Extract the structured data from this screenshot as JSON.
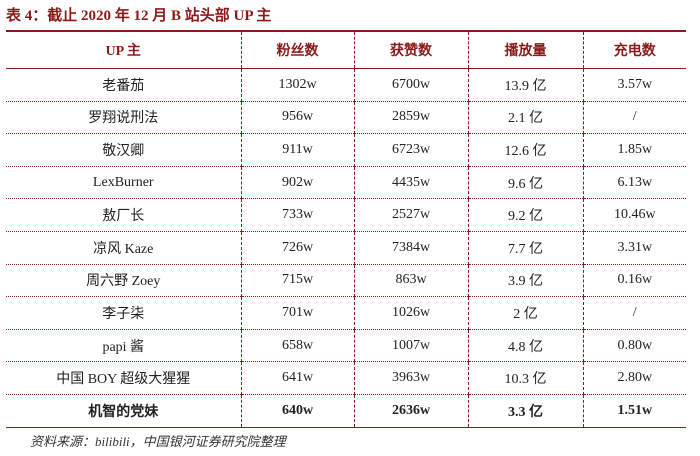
{
  "header": {
    "title": "表 4：截止 2020 年 12 月 B 站头部 UP 主"
  },
  "table": {
    "columns": [
      "UP 主",
      "粉丝数",
      "获赞数",
      "播放量",
      "充电数"
    ],
    "rows": [
      [
        "老番茄",
        "1302w",
        "6700w",
        "13.9 亿",
        "3.57w"
      ],
      [
        "罗翔说刑法",
        "956w",
        "2859w",
        "2.1 亿",
        "/"
      ],
      [
        "敬汉卿",
        "911w",
        "6723w",
        "12.6 亿",
        "1.85w"
      ],
      [
        "LexBurner",
        "902w",
        "4435w",
        "9.6 亿",
        "6.13w"
      ],
      [
        "敖厂长",
        "733w",
        "2527w",
        "9.2 亿",
        "10.46w"
      ],
      [
        "凉风 Kaze",
        "726w",
        "7384w",
        "7.7 亿",
        "3.31w"
      ],
      [
        "周六野 Zoey",
        "715w",
        "863w",
        "3.9 亿",
        "0.16w"
      ],
      [
        "李子柒",
        "701w",
        "1026w",
        "2 亿",
        "/"
      ],
      [
        "papi 酱",
        "658w",
        "1007w",
        "4.8 亿",
        "0.80w"
      ],
      [
        "中国 BOY 超级大猩猩",
        "641w",
        "3963w",
        "10.3 亿",
        "2.80w"
      ],
      [
        "机智的党妹",
        "640w",
        "2636w",
        "3.3 亿",
        "1.51w"
      ]
    ]
  },
  "footer": {
    "source": "资料来源：bilibili，中国银河证券研究院整理"
  }
}
